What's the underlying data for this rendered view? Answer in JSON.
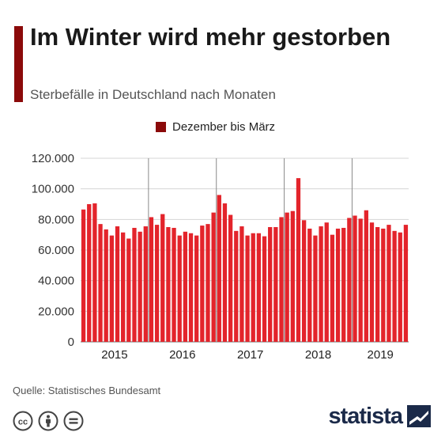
{
  "title": "Im Winter wird mehr gestorben",
  "subtitle": "Sterbefälle in Deutschland nach Monaten",
  "legend": {
    "label": "Dezember bis März",
    "color": "#8b0a0a"
  },
  "source": "Quelle: Statistisches Bundesamt",
  "brand": {
    "name": "statista",
    "color": "#1b2a49"
  },
  "license_icons": [
    "cc-icon",
    "attribution-icon",
    "no-derivatives-icon"
  ],
  "chart_data": {
    "type": "bar",
    "title": "Im Winter wird mehr gestorben",
    "subtitle": "Sterbefälle in Deutschland nach Monaten",
    "xlabel": "",
    "ylabel": "",
    "ylim": [
      0,
      120000
    ],
    "yticks": [
      0,
      20000,
      40000,
      60000,
      80000,
      100000,
      120000
    ],
    "ytick_labels": [
      "0",
      "20.000",
      "40.000",
      "60.000",
      "80.000",
      "100.000",
      "120.000"
    ],
    "grid": true,
    "legend_position": "top",
    "year_labels": [
      "2015",
      "2016",
      "2017",
      "2018",
      "2019"
    ],
    "months_per_year": 12,
    "colors": {
      "winter": "#8b0a0a",
      "other": "#e3242b"
    },
    "series": [
      {
        "name": "Sterbefälle",
        "values": [
          86500,
          90000,
          90500,
          77000,
          73500,
          69500,
          75500,
          71500,
          67500,
          74500,
          72000,
          75500,
          81500,
          76500,
          83500,
          75000,
          74500,
          69500,
          72000,
          71000,
          69500,
          76000,
          77000,
          84500,
          96000,
          90500,
          83000,
          72500,
          75500,
          69500,
          71000,
          71000,
          69000,
          75000,
          75000,
          81500,
          84500,
          85500,
          107000,
          79500,
          74000,
          69500,
          75500,
          78000,
          70000,
          74000,
          74500,
          81000,
          82500,
          80500,
          86000,
          78000,
          75000,
          74000,
          76500,
          72500,
          71500,
          76500
        ],
        "winter": [
          false,
          false,
          false,
          false,
          false,
          false,
          false,
          false,
          false,
          false,
          false,
          false,
          false,
          false,
          false,
          false,
          false,
          false,
          false,
          false,
          false,
          false,
          false,
          false,
          false,
          false,
          false,
          false,
          false,
          false,
          false,
          false,
          false,
          false,
          false,
          false,
          false,
          false,
          false,
          false,
          false,
          false,
          false,
          false,
          false,
          false,
          false,
          false,
          false,
          false,
          false,
          false,
          false,
          false,
          false,
          false,
          false,
          false
        ]
      }
    ]
  }
}
